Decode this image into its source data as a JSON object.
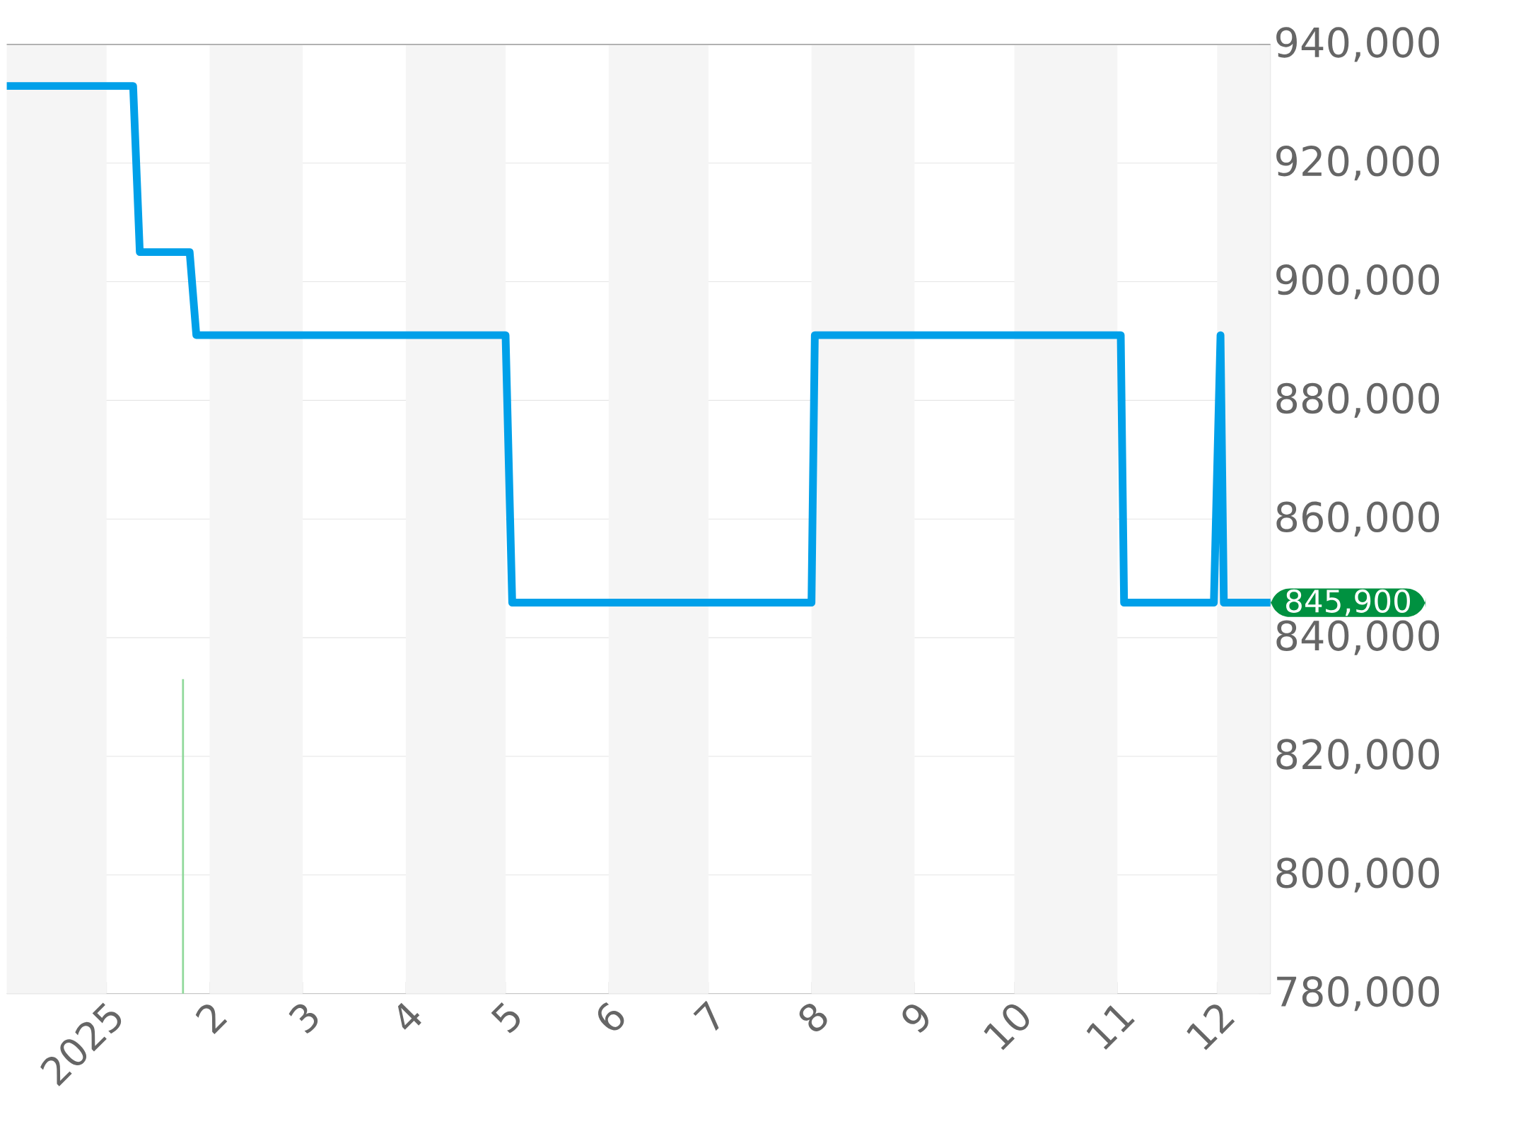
{
  "chart_data": {
    "type": "line",
    "xlim": [
      "2024-12-02",
      "2025-12-17"
    ],
    "ylim": [
      780000,
      940000
    ],
    "xticks": [
      {
        "value": "2025-01-01",
        "label": "2025"
      },
      {
        "value": "2025-02-01",
        "label": "2"
      },
      {
        "value": "2025-03-01",
        "label": "3"
      },
      {
        "value": "2025-04-01",
        "label": "4"
      },
      {
        "value": "2025-05-01",
        "label": "5"
      },
      {
        "value": "2025-06-01",
        "label": "6"
      },
      {
        "value": "2025-07-01",
        "label": "7"
      },
      {
        "value": "2025-08-01",
        "label": "8"
      },
      {
        "value": "2025-09-01",
        "label": "9"
      },
      {
        "value": "2025-10-01",
        "label": "10"
      },
      {
        "value": "2025-11-01",
        "label": "11"
      },
      {
        "value": "2025-12-01",
        "label": "12"
      }
    ],
    "yticks": [
      {
        "value": 780000,
        "label": "780,000"
      },
      {
        "value": 800000,
        "label": "800,000"
      },
      {
        "value": 820000,
        "label": "820,000"
      },
      {
        "value": 840000,
        "label": "840,000"
      },
      {
        "value": 860000,
        "label": "860,000"
      },
      {
        "value": 880000,
        "label": "880,000"
      },
      {
        "value": 900000,
        "label": "900,000"
      },
      {
        "value": 920000,
        "label": "920,000"
      },
      {
        "value": 940000,
        "label": "940,000"
      }
    ],
    "grid": "y",
    "bands": [
      {
        "axis": "x",
        "from": "2024-12-02",
        "to": "2025-01-01",
        "color": "#f5f5f5"
      },
      {
        "axis": "x",
        "from": "2025-02-01",
        "to": "2025-03-01",
        "color": "#f5f5f5"
      },
      {
        "axis": "x",
        "from": "2025-04-01",
        "to": "2025-05-01",
        "color": "#f5f5f5"
      },
      {
        "axis": "x",
        "from": "2025-06-01",
        "to": "2025-07-01",
        "color": "#f5f5f5"
      },
      {
        "axis": "x",
        "from": "2025-08-01",
        "to": "2025-09-01",
        "color": "#f5f5f5"
      },
      {
        "axis": "x",
        "from": "2025-10-01",
        "to": "2025-11-01",
        "color": "#f5f5f5"
      },
      {
        "axis": "x",
        "from": "2025-12-01",
        "to": "2025-12-17",
        "color": "#f5f5f5"
      }
    ],
    "series": [
      {
        "color": "#00a0e9",
        "x": [
          "2024-12-02",
          "2025-01-09",
          "2025-01-11",
          "2025-01-26",
          "2025-01-28",
          "2025-05-01",
          "2025-05-03",
          "2025-08-01",
          "2025-08-02",
          "2025-11-02",
          "2025-11-03",
          "2025-11-30",
          "2025-12-02",
          "2025-12-03",
          "2025-12-17"
        ],
        "values": [
          933000,
          933000,
          905000,
          905000,
          891000,
          891000,
          845900,
          845900,
          891000,
          891000,
          845900,
          845900,
          891000,
          845900,
          845900
        ]
      },
      {
        "type": "bar",
        "color": "#8fd89a",
        "x": [
          "2025-01-24"
        ],
        "values": [
          833000
        ]
      }
    ],
    "annotations": [
      {
        "text": "845,900",
        "x": "2025-12-17",
        "y": 845900
      }
    ]
  }
}
